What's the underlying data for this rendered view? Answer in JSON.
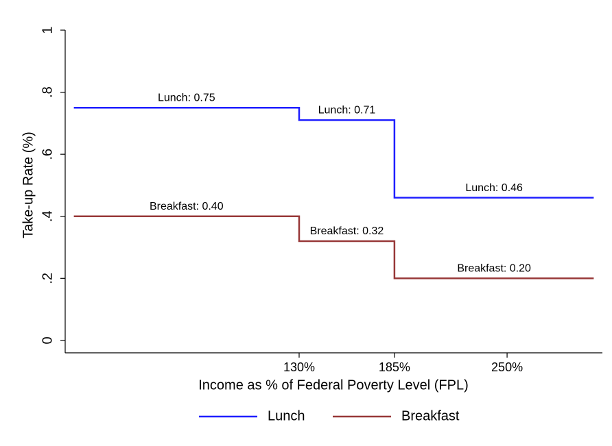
{
  "chart_data": {
    "type": "line",
    "x_label": "Income as % of Federal Poverty Level (FPL)",
    "y_label": "Take-up Rate (%)",
    "xlim": [
      -5,
      305
    ],
    "ylim": [
      -0.04,
      1
    ],
    "xticks": [
      {
        "value": 130,
        "label": "130%"
      },
      {
        "value": 185,
        "label": "185%"
      },
      {
        "value": 250,
        "label": "250%"
      }
    ],
    "yticks": [
      0,
      {
        "value": 0.2,
        "label": ".2"
      },
      {
        "value": 0.4,
        "label": ".4"
      },
      {
        "value": 0.6,
        "label": ".6"
      },
      {
        "value": 0.8,
        "label": ".8"
      },
      1
    ],
    "legend": "bottom",
    "series": [
      {
        "name": "Lunch",
        "color": "#1f1fff",
        "x": [
          0,
          130,
          130,
          185,
          185,
          300
        ],
        "values": [
          0.75,
          0.75,
          0.71,
          0.71,
          0.46,
          0.46
        ]
      },
      {
        "name": "Breakfast",
        "color": "#983838",
        "x": [
          0,
          130,
          130,
          185,
          185,
          300
        ],
        "values": [
          0.4,
          0.4,
          0.32,
          0.32,
          0.2,
          0.2
        ]
      }
    ],
    "annotations": [
      {
        "text": "Lunch: 0.75",
        "x": 65,
        "y": 0.75
      },
      {
        "text": "Lunch: 0.71",
        "x": 157.5,
        "y": 0.71
      },
      {
        "text": "Lunch: 0.46",
        "x": 242.5,
        "y": 0.46
      },
      {
        "text": "Breakfast: 0.40",
        "x": 65,
        "y": 0.4
      },
      {
        "text": "Breakfast: 0.32",
        "x": 157.5,
        "y": 0.32
      },
      {
        "text": "Breakfast: 0.20",
        "x": 242.5,
        "y": 0.2
      }
    ]
  }
}
